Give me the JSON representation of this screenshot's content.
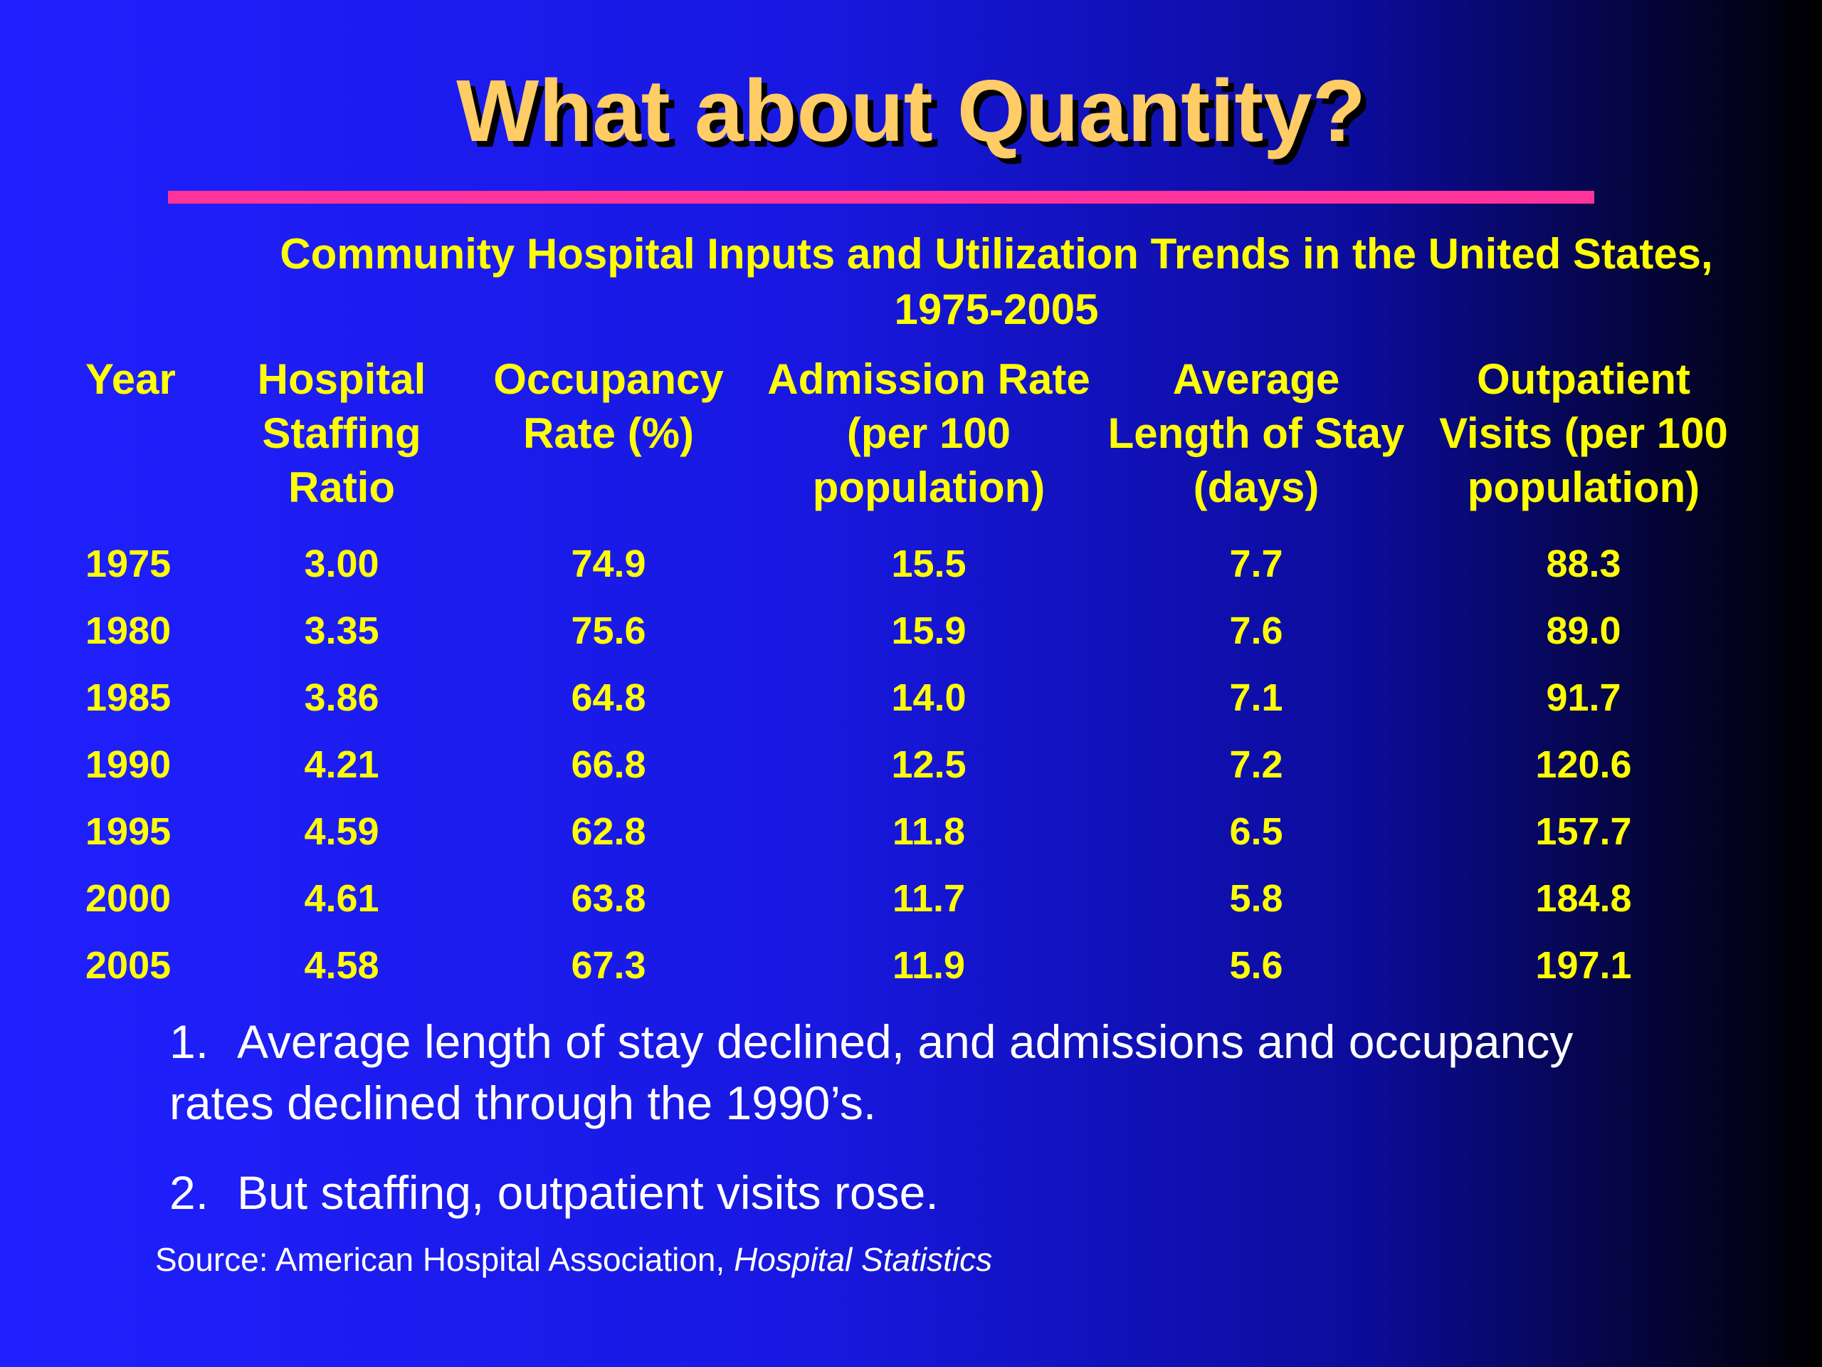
{
  "slide": {
    "title": "What about Quantity?",
    "colors": {
      "title": "#ffcc66",
      "rule": "#ff3399",
      "table_text": "#ffff00",
      "body_text": "#ffffff",
      "background_start": "#2020ff",
      "background_end": "#000000"
    }
  },
  "chart_data": {
    "type": "table",
    "title": "Community Hospital Inputs and Utilization Trends in the United States, 1975-2005",
    "columns": [
      "Year",
      "Hospital Staffing Ratio",
      "Occupancy Rate (%)",
      "Admission Rate (per 100 population)",
      "Average Length of Stay (days)",
      "Outpatient Visits (per 100 population)"
    ],
    "rows": [
      [
        "1975",
        "3.00",
        "74.9",
        "15.5",
        "7.7",
        "88.3"
      ],
      [
        "1980",
        "3.35",
        "75.6",
        "15.9",
        "7.6",
        "89.0"
      ],
      [
        "1985",
        "3.86",
        "64.8",
        "14.0",
        "7.1",
        "91.7"
      ],
      [
        "1990",
        "4.21",
        "66.8",
        "12.5",
        "7.2",
        "120.6"
      ],
      [
        "1995",
        "4.59",
        "62.8",
        "11.8",
        "6.5",
        "157.7"
      ],
      [
        "2000",
        "4.61",
        "63.8",
        "11.7",
        "5.8",
        "184.8"
      ],
      [
        "2005",
        "4.58",
        "67.3",
        "11.9",
        "5.6",
        "197.1"
      ]
    ]
  },
  "findings": [
    {
      "number": "1.",
      "text": "Average length of stay declined, and admissions and occupancy rates declined through the 1990’s."
    },
    {
      "number": "2.",
      "text": "But staffing, outpatient visits rose."
    }
  ],
  "source": {
    "prefix": "Source: American Hospital Association, ",
    "publication": "Hospital Statistics"
  }
}
